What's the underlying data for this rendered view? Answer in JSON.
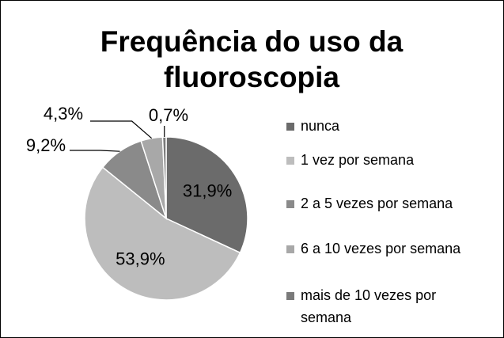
{
  "chart_data": {
    "type": "pie",
    "title": "Frequência do uso da fluoroscopia",
    "categories": [
      "nunca",
      "1 vez por semana",
      "2 a 5 vezes por semana",
      "6 a 10 vezes por semana",
      "mais de 10 vezes por semana"
    ],
    "values": [
      31.9,
      53.9,
      9.2,
      4.3,
      0.7
    ],
    "value_labels": [
      "31,9%",
      "53,9%",
      "9,2%",
      "4,3%",
      "0,7%"
    ],
    "colors": [
      "#6b6b6b",
      "#bdbdbd",
      "#8a8a8a",
      "#a8a8a8",
      "#7a7a7a"
    ],
    "legend": "right"
  }
}
